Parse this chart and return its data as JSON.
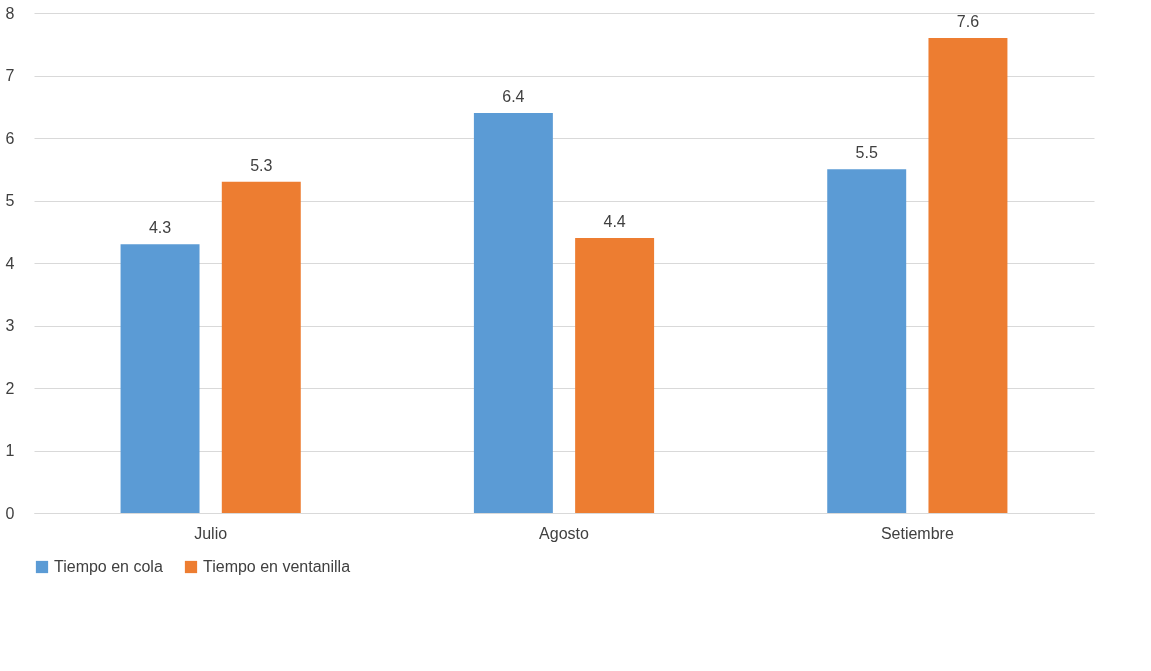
{
  "chart_data": {
    "type": "bar",
    "categories": [
      "Julio",
      "Agosto",
      "Setiembre"
    ],
    "series": [
      {
        "name": "Tiempo en cola",
        "color": "#5b9bd5",
        "values": [
          4.3,
          6.4,
          5.5
        ]
      },
      {
        "name": "Tiempo en ventanilla",
        "color": "#ed7d31",
        "values": [
          5.3,
          4.4,
          7.6
        ]
      }
    ],
    "ylim": [
      0,
      8
    ],
    "yticks": [
      0,
      1,
      2,
      3,
      4,
      5,
      6,
      7,
      8
    ],
    "grid": "y",
    "legend": "bottom",
    "data_labels": true
  }
}
